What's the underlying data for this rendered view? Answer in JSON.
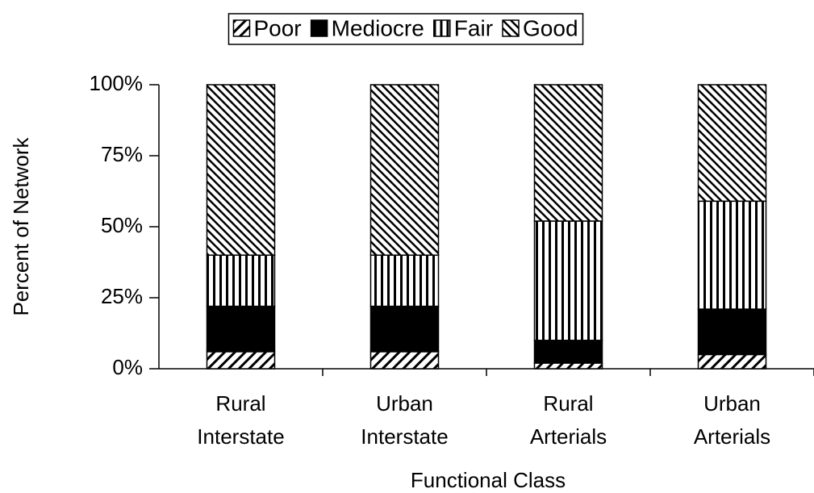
{
  "chart_data": {
    "type": "stacked-bar",
    "categories": [
      "Rural Interstate",
      "Urban Interstate",
      "Rural Arterials",
      "Urban Arterials"
    ],
    "series": [
      {
        "name": "Poor",
        "color": "#000000",
        "pattern": "diagonal-up",
        "values": [
          6,
          6,
          2,
          5
        ]
      },
      {
        "name": "Mediocre",
        "color": "#000000",
        "pattern": "solid",
        "values": [
          16,
          16,
          8,
          16
        ]
      },
      {
        "name": "Fair",
        "color": "#000000",
        "pattern": "vertical",
        "values": [
          18,
          18,
          42,
          38
        ]
      },
      {
        "name": "Good",
        "color": "#000000",
        "pattern": "diagonal-down",
        "values": [
          60,
          60,
          48,
          41
        ]
      }
    ],
    "ylim": [
      0,
      100
    ],
    "yticks": [
      {
        "value": 0,
        "label": "0%"
      },
      {
        "value": 25,
        "label": "25%"
      },
      {
        "value": 50,
        "label": "50%"
      },
      {
        "value": 75,
        "label": "75%"
      },
      {
        "value": 100,
        "label": "100%"
      }
    ],
    "ylabel": "Percent of Network",
    "xlabel": "Functional Class",
    "legend": "top"
  }
}
